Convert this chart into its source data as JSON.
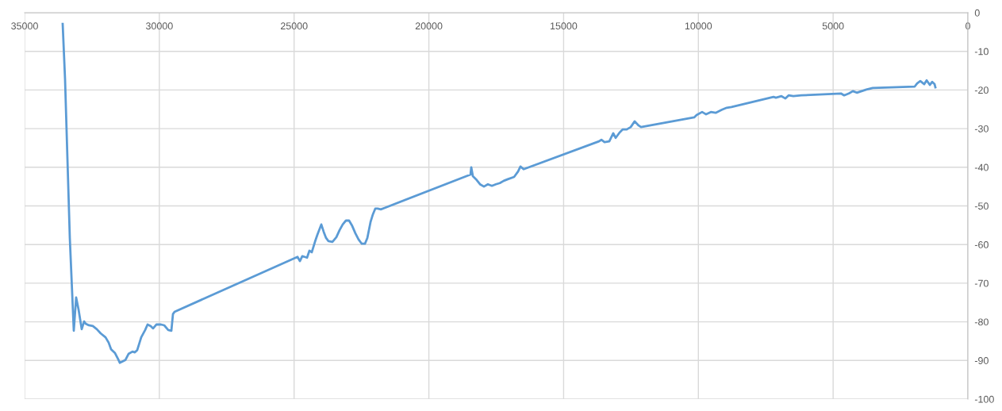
{
  "chart_data": {
    "type": "line",
    "xlim": [
      35000,
      0
    ],
    "ylim": [
      -100,
      0
    ],
    "xticks": [
      35000,
      30000,
      25000,
      20000,
      15000,
      10000,
      5000,
      0
    ],
    "yticks": [
      0,
      -10,
      -20,
      -30,
      -40,
      -50,
      -60,
      -70,
      -80,
      -90,
      -100
    ],
    "grid": true,
    "marker": "none",
    "line_style": "solid",
    "series": [
      {
        "color": "#5b9bd5",
        "x": [
          33587,
          33499,
          33322,
          33175,
          33087,
          32998,
          32881,
          32792,
          32733,
          32616,
          32468,
          32321,
          32174,
          31997,
          31880,
          31791,
          31644,
          31526,
          31468,
          31320,
          31262,
          31144,
          30997,
          30908,
          30820,
          30673,
          30526,
          30437,
          30320,
          30231,
          30113,
          29937,
          29819,
          29672,
          29554,
          29495,
          29436,
          24874,
          24785,
          24697,
          24609,
          24520,
          24432,
          24344,
          24226,
          24138,
          23991,
          23902,
          23814,
          23726,
          23578,
          23431,
          23314,
          23196,
          23078,
          22960,
          22843,
          22725,
          22607,
          22489,
          22372,
          22283,
          22165,
          22077,
          21989,
          21901,
          21783,
          21636,
          18456,
          18427,
          18368,
          18250,
          18103,
          17956,
          17809,
          17662,
          17514,
          17367,
          17220,
          17073,
          16837,
          16690,
          16602,
          16484,
          13688,
          13599,
          13482,
          13305,
          13158,
          13069,
          12922,
          12805,
          12657,
          12510,
          12363,
          12216,
          12127,
          10155,
          10067,
          9861,
          9714,
          9537,
          9360,
          9125,
          8948,
          8772,
          7211,
          7123,
          6917,
          6770,
          6652,
          6476,
          6181,
          4709,
          4592,
          4415,
          4268,
          4121,
          3767,
          3532,
          1972,
          1883,
          1766,
          1619,
          1530,
          1412,
          1324,
          1236,
          1206
        ],
        "values": [
          -2.9,
          -17.2,
          -58.3,
          -82.3,
          -73.7,
          -76.8,
          -81.9,
          -79.9,
          -80.5,
          -80.9,
          -81.1,
          -81.9,
          -83.0,
          -84.0,
          -85.4,
          -87.1,
          -88.1,
          -89.7,
          -90.6,
          -90.1,
          -89.9,
          -88.3,
          -87.7,
          -87.9,
          -87.3,
          -84.0,
          -82.1,
          -80.7,
          -81.1,
          -81.7,
          -80.7,
          -80.7,
          -80.9,
          -82.1,
          -82.3,
          -78.0,
          -77.4,
          -63.2,
          -64.3,
          -63.0,
          -63.2,
          -63.4,
          -61.6,
          -62.0,
          -59.3,
          -57.5,
          -54.8,
          -56.7,
          -58.3,
          -59.1,
          -59.3,
          -58.1,
          -56.3,
          -54.8,
          -53.8,
          -53.8,
          -55.2,
          -57.1,
          -58.7,
          -59.8,
          -59.8,
          -58.3,
          -54.2,
          -52.2,
          -50.7,
          -50.7,
          -50.9,
          -50.5,
          -41.9,
          -40.0,
          -42.3,
          -43.1,
          -44.4,
          -45.0,
          -44.4,
          -44.8,
          -44.4,
          -44.1,
          -43.5,
          -43.1,
          -42.5,
          -41.1,
          -39.8,
          -40.5,
          -33.3,
          -32.9,
          -33.5,
          -33.3,
          -31.2,
          -32.4,
          -31.0,
          -30.2,
          -30.2,
          -29.6,
          -28.1,
          -29.2,
          -29.6,
          -27.1,
          -26.5,
          -25.7,
          -26.3,
          -25.7,
          -25.9,
          -25.1,
          -24.6,
          -24.4,
          -21.8,
          -22.0,
          -21.6,
          -22.2,
          -21.4,
          -21.6,
          -21.4,
          -20.9,
          -21.4,
          -20.9,
          -20.3,
          -20.7,
          -19.9,
          -19.5,
          -19.1,
          -18.3,
          -17.7,
          -18.5,
          -17.5,
          -18.7,
          -17.9,
          -18.5,
          -19.3
        ]
      }
    ]
  }
}
